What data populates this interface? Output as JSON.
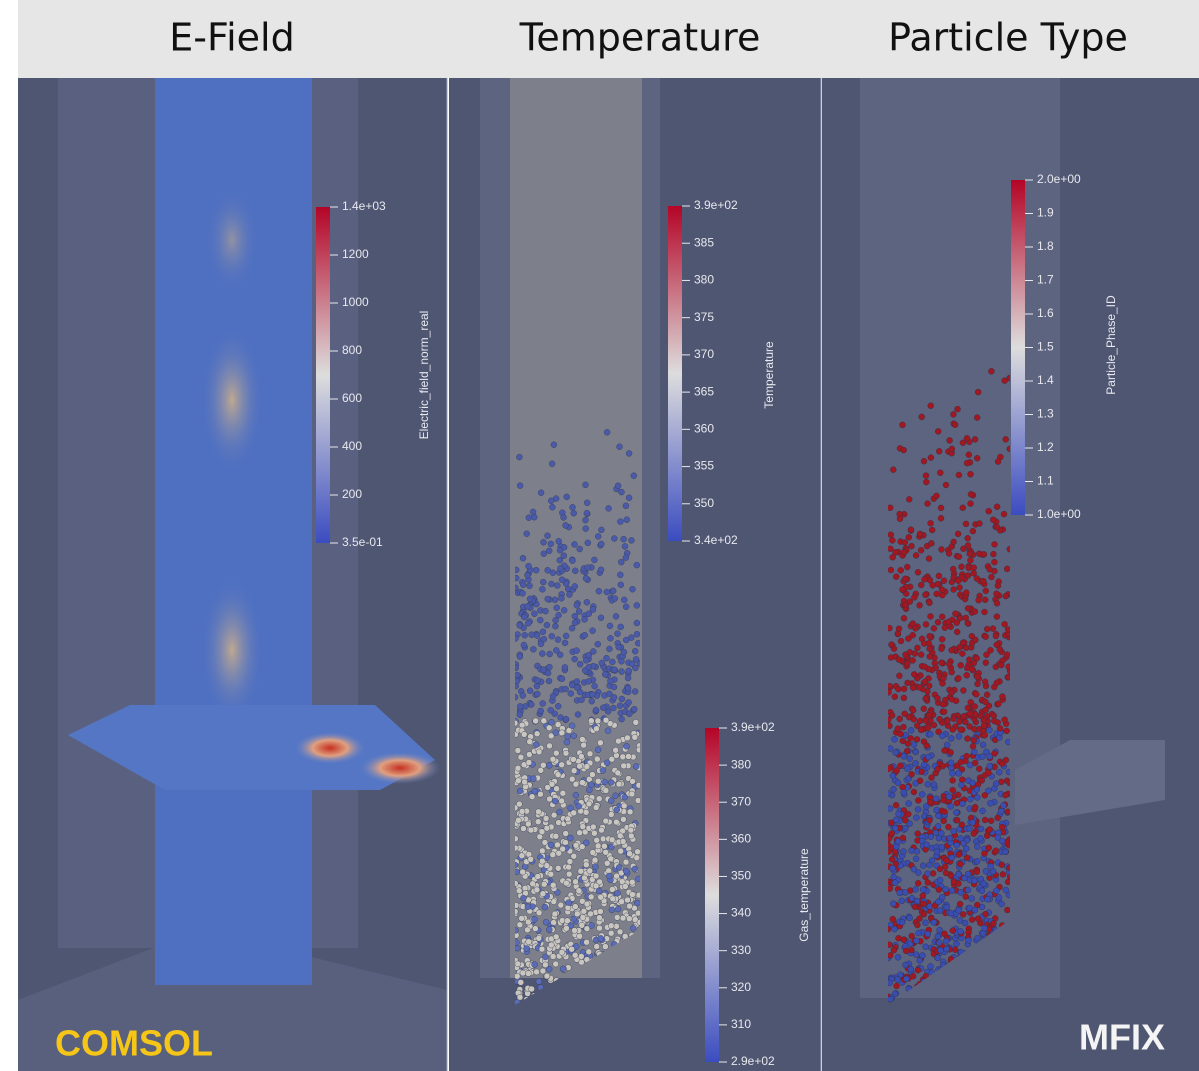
{
  "header": {
    "titles": [
      "E-Field",
      "Temperature",
      "Particle Type"
    ]
  },
  "panels": [
    {
      "colorbars": [
        {
          "title": "Electric_field_norm_real",
          "ticks": [
            "1.4e+03",
            "1200",
            "1000",
            "800",
            "600",
            "400",
            "200",
            "3.5e-01"
          ]
        }
      ],
      "label": "COMSOL"
    },
    {
      "colorbars": [
        {
          "title": "Temperature",
          "ticks": [
            "3.9e+02",
            "385",
            "380",
            "375",
            "370",
            "365",
            "360",
            "355",
            "350",
            "3.4e+02"
          ]
        },
        {
          "title": "Gas_temperature",
          "ticks": [
            "3.9e+02",
            "380",
            "370",
            "360",
            "350",
            "340",
            "330",
            "320",
            "310",
            "2.9e+02"
          ]
        }
      ]
    },
    {
      "colorbars": [
        {
          "title": "Particle_Phase_ID",
          "ticks": [
            "2.0e+00",
            "1.9",
            "1.8",
            "1.7",
            "1.6",
            "1.5",
            "1.4",
            "1.3",
            "1.2",
            "1.1",
            "1.0e+00"
          ]
        }
      ],
      "label": "MFIX"
    }
  ]
}
